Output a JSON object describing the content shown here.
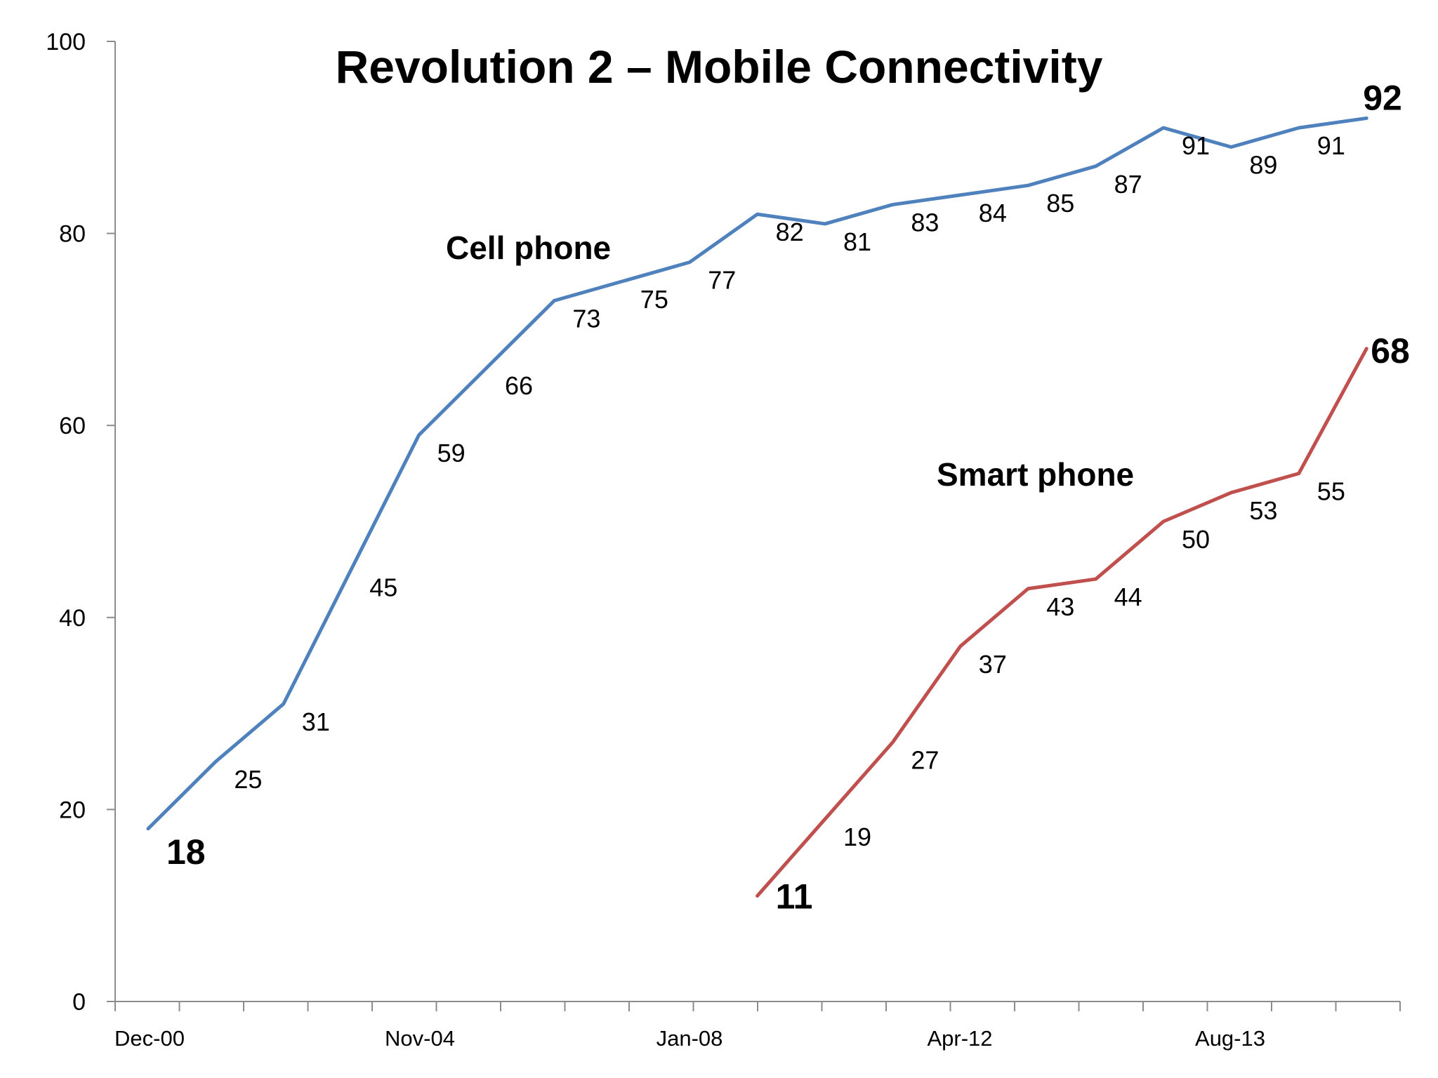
{
  "chart_data": {
    "type": "line",
    "title": "Revolution 2 – Mobile Connectivity",
    "xlabel": "",
    "ylabel": "",
    "ylim": [
      0,
      100
    ],
    "yticks": [
      0,
      20,
      40,
      60,
      80,
      100
    ],
    "xtick_labels": [
      "Dec-00",
      "Nov-04",
      "Jan-08",
      "Apr-12",
      "Aug-13"
    ],
    "grid": false,
    "legend": "none",
    "series": [
      {
        "name": "Cell phone",
        "color": "#4f81bd",
        "values": [
          18,
          25,
          31,
          45,
          59,
          66,
          73,
          75,
          77,
          82,
          81,
          83,
          84,
          85,
          87,
          91,
          89,
          91,
          92
        ],
        "label": "Cell phone",
        "start_label": "18",
        "end_label": "92"
      },
      {
        "name": "Smart phone",
        "color": "#c0504d",
        "values": [
          11,
          19,
          27,
          37,
          43,
          44,
          50,
          53,
          55,
          68
        ],
        "label": "Smart phone",
        "start_label": "11",
        "end_label": "68"
      }
    ]
  }
}
